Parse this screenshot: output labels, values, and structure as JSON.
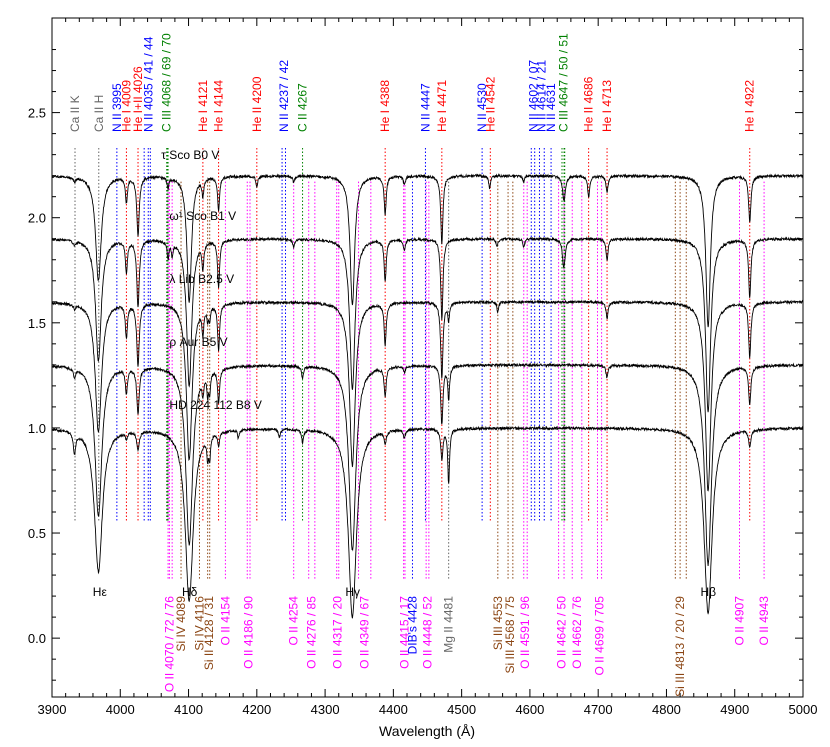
{
  "colors": {
    "He": "#ff0000",
    "N": "#0000ff",
    "C": "#008000",
    "O": "#ff00ff",
    "Si": "#8b4513",
    "Ca": "#666666",
    "Mg": "#666666",
    "H": "#000000",
    "DIB": "#0000ff"
  },
  "chart_data": {
    "type": "line",
    "xlabel": "Wavelength (Å)",
    "xlim": [
      3900,
      5000
    ],
    "ylim": [
      -0.28,
      2.95
    ],
    "x_ticks": [
      3900,
      4000,
      4100,
      4200,
      4300,
      4400,
      4500,
      4600,
      4700,
      4800,
      4900,
      5000
    ],
    "x_tick_labels": [
      "3900",
      "4000",
      "4100",
      "4200",
      "4300",
      "4400",
      "4500",
      "4600",
      "4700",
      "4800",
      "4900",
      "5000"
    ],
    "y_ticks": [
      0.0,
      0.5,
      1.0,
      1.5,
      2.0,
      2.5
    ],
    "y_tick_labels": [
      "0.0",
      "0.5",
      "1.0",
      "1.5",
      "2.0",
      "2.5"
    ],
    "grid": false,
    "series": [
      {
        "name": "τ Sco   B0 V",
        "label_x": 4060,
        "label_y": 2.28,
        "continuum": 2.2,
        "lines": [
          [
            3968,
            0.5,
            5
          ],
          [
            3933,
            0.02,
            2
          ],
          [
            4026,
            0.28,
            2.2
          ],
          [
            4101,
            0.6,
            4
          ],
          [
            4009,
            0.12,
            1.8
          ],
          [
            4121,
            0.08,
            1.6
          ],
          [
            4144,
            0.16,
            1.8
          ],
          [
            4388,
            0.18,
            1.8
          ],
          [
            4471,
            0.32,
            2
          ],
          [
            4340,
            0.62,
            4
          ],
          [
            4686,
            0.1,
            1.8
          ],
          [
            4541,
            0.06,
            1.6
          ],
          [
            4200,
            0.05,
            1.6
          ],
          [
            4713,
            0.08,
            1.8
          ],
          [
            4922,
            0.22,
            2
          ],
          [
            4861,
            0.72,
            4
          ],
          [
            4650,
            0.12,
            2.5
          ],
          [
            4070,
            0.05,
            1.6
          ],
          [
            4254,
            0.03,
            1.5
          ],
          [
            4416,
            0.04,
            1.8
          ],
          [
            4591,
            0.03,
            1.5
          ]
        ]
      },
      {
        "name": "ω¹ Sco   B1 V",
        "label_x": 4072,
        "label_y": 1.99,
        "continuum": 1.9,
        "lines": [
          [
            3968,
            0.58,
            5
          ],
          [
            3933,
            0.02,
            2
          ],
          [
            4026,
            0.32,
            2.2
          ],
          [
            4101,
            0.7,
            4.5
          ],
          [
            4009,
            0.15,
            1.8
          ],
          [
            4121,
            0.12,
            1.6
          ],
          [
            4144,
            0.22,
            1.8
          ],
          [
            4388,
            0.2,
            1.8
          ],
          [
            4471,
            0.38,
            2
          ],
          [
            4340,
            0.72,
            4.5
          ],
          [
            4713,
            0.1,
            1.8
          ],
          [
            4922,
            0.28,
            2
          ],
          [
            4861,
            0.82,
            4.5
          ],
          [
            4650,
            0.1,
            2.5
          ],
          [
            4070,
            0.08,
            1.6
          ],
          [
            4076,
            0.06,
            1.4
          ],
          [
            4254,
            0.04,
            1.5
          ],
          [
            4416,
            0.05,
            1.8
          ],
          [
            4591,
            0.04,
            1.5
          ],
          [
            4649,
            0.05,
            1.5
          ],
          [
            4552,
            0.04,
            1.4
          ]
        ]
      },
      {
        "name": "λ Lib   B2.5 V",
        "label_x": 4072,
        "label_y": 1.69,
        "continuum": 1.6,
        "lines": [
          [
            3968,
            0.62,
            5.5
          ],
          [
            3933,
            0.02,
            2
          ],
          [
            4026,
            0.3,
            2.2
          ],
          [
            4101,
            0.75,
            5
          ],
          [
            4009,
            0.16,
            1.8
          ],
          [
            4121,
            0.12,
            1.6
          ],
          [
            4144,
            0.22,
            1.8
          ],
          [
            4388,
            0.2,
            1.8
          ],
          [
            4471,
            0.36,
            2
          ],
          [
            4340,
            0.78,
            5
          ],
          [
            4713,
            0.08,
            1.8
          ],
          [
            4922,
            0.26,
            2
          ],
          [
            4861,
            0.9,
            5
          ],
          [
            4128,
            0.06,
            1.4
          ],
          [
            4131,
            0.06,
            1.4
          ],
          [
            4481,
            0.08,
            1.6
          ],
          [
            4553,
            0.05,
            1.4
          ]
        ]
      },
      {
        "name": "ρ Aur   B5 V",
        "label_x": 4072,
        "label_y": 1.39,
        "continuum": 1.3,
        "lines": [
          [
            3968,
            0.72,
            6
          ],
          [
            3933,
            0.04,
            2
          ],
          [
            4026,
            0.22,
            2.2
          ],
          [
            4101,
            0.85,
            6
          ],
          [
            4009,
            0.12,
            1.8
          ],
          [
            4121,
            0.08,
            1.6
          ],
          [
            4144,
            0.16,
            1.8
          ],
          [
            4388,
            0.14,
            1.8
          ],
          [
            4471,
            0.28,
            2
          ],
          [
            4340,
            0.88,
            6
          ],
          [
            4713,
            0.06,
            1.8
          ],
          [
            4922,
            0.18,
            2
          ],
          [
            4861,
            0.95,
            6
          ],
          [
            4128,
            0.1,
            1.4
          ],
          [
            4131,
            0.1,
            1.4
          ],
          [
            4481,
            0.16,
            1.6
          ],
          [
            4267,
            0.06,
            1.6
          ],
          [
            4416,
            0.03,
            1.8
          ]
        ]
      },
      {
        "name": "HD 224 112   B8 V",
        "label_x": 4072,
        "label_y": 1.09,
        "continuum": 1.0,
        "lines": [
          [
            3968,
            0.68,
            7
          ],
          [
            3933,
            0.1,
            2
          ],
          [
            4026,
            0.09,
            2.2
          ],
          [
            4101,
            0.82,
            7
          ],
          [
            4009,
            0.03,
            1.8
          ],
          [
            4144,
            0.06,
            1.8
          ],
          [
            4388,
            0.06,
            1.8
          ],
          [
            4471,
            0.14,
            2
          ],
          [
            4340,
            0.9,
            7
          ],
          [
            4922,
            0.08,
            2
          ],
          [
            4861,
            0.88,
            7
          ],
          [
            4128,
            0.1,
            1.4
          ],
          [
            4131,
            0.1,
            1.4
          ],
          [
            4481,
            0.26,
            1.6
          ],
          [
            4267,
            0.06,
            1.6
          ],
          [
            4416,
            0.04,
            1.8
          ],
          [
            4233,
            0.04,
            1.4
          ],
          [
            4173,
            0.04,
            1.4
          ]
        ]
      }
    ],
    "line_labels_top": [
      {
        "text": "Ca II K",
        "x": 3933.7,
        "color": "Ca",
        "group": 1
      },
      {
        "text": "Ca II H",
        "x": 3968.5,
        "color": "Ca",
        "group": 1
      },
      {
        "text": "N II 3995",
        "x": 3995,
        "color": "N",
        "group": 2
      },
      {
        "text": "He I 4009",
        "x": 4009,
        "color": "He",
        "group": 2
      },
      {
        "text": "He I+II 4026",
        "x": 4026,
        "color": "He",
        "group": 2
      },
      {
        "text": "N II 4035 / 41 / 44",
        "x": 4041,
        "color": "N",
        "group": 2,
        "marks": [
          4035,
          4041,
          4044
        ]
      },
      {
        "text": "C III 4068 / 69 / 70",
        "x": 4068,
        "color": "C",
        "group": 2,
        "marks": [
          4068,
          4069,
          4070
        ]
      },
      {
        "text": "He I 4121",
        "x": 4121,
        "color": "He",
        "group": 2
      },
      {
        "text": "He I 4144",
        "x": 4144,
        "color": "He",
        "group": 2
      },
      {
        "text": "He II 4200",
        "x": 4200,
        "color": "He",
        "group": 2
      },
      {
        "text": "N II 4237 / 42",
        "x": 4240,
        "color": "N",
        "group": 2,
        "marks": [
          4237,
          4242
        ]
      },
      {
        "text": "C II 4267",
        "x": 4267,
        "color": "C",
        "group": 2
      },
      {
        "text": "He I 4388",
        "x": 4388,
        "color": "He",
        "group": 2
      },
      {
        "text": "N II 4447",
        "x": 4447,
        "color": "N",
        "group": 2
      },
      {
        "text": "He I 4471",
        "x": 4471,
        "color": "He",
        "group": 2
      },
      {
        "text": "N II 4530",
        "x": 4530,
        "color": "N",
        "group": 2
      },
      {
        "text": "He II 4542",
        "x": 4542,
        "color": "He",
        "group": 2
      },
      {
        "text": "N II 4602 / 07",
        "x": 4605,
        "color": "N",
        "group": 2,
        "marks": [
          4602,
          4607
        ]
      },
      {
        "text": "N II 4614 / 21",
        "x": 4617,
        "color": "N",
        "group": 2,
        "marks": [
          4614,
          4621
        ]
      },
      {
        "text": "N II 4631",
        "x": 4631,
        "color": "N",
        "group": 2
      },
      {
        "text": "C III 4647 / 50 / 51",
        "x": 4649,
        "color": "C",
        "group": 2,
        "marks": [
          4647,
          4650,
          4651
        ]
      },
      {
        "text": "He II 4686",
        "x": 4686,
        "color": "He",
        "group": 2
      },
      {
        "text": "He I 4713",
        "x": 4713,
        "color": "He",
        "group": 2
      },
      {
        "text": "He I 4922",
        "x": 4922,
        "color": "He",
        "group": 2
      }
    ],
    "line_labels_bottom": [
      {
        "text": "Hε",
        "x": 3970,
        "color": "H",
        "kind": "horizontal"
      },
      {
        "text": "Hδ",
        "x": 4101.7,
        "color": "H",
        "kind": "horizontal"
      },
      {
        "text": "Hγ",
        "x": 4340.5,
        "color": "H",
        "kind": "horizontal"
      },
      {
        "text": "Hβ",
        "x": 4861.3,
        "color": "H",
        "kind": "horizontal"
      },
      {
        "text": "O II 4070 / 72 / 76",
        "x": 4072,
        "color": "O",
        "marks": [
          4070,
          4072,
          4076
        ]
      },
      {
        "text": "Si IV 4089",
        "x": 4089,
        "color": "Si"
      },
      {
        "text": "Si IV 4116",
        "x": 4116,
        "color": "Si"
      },
      {
        "text": "Si II 4128 / 31",
        "x": 4130,
        "color": "Si",
        "marks": [
          4128,
          4131
        ]
      },
      {
        "text": "O II 4154",
        "x": 4154,
        "color": "O"
      },
      {
        "text": "O II 4186 / 90",
        "x": 4188,
        "color": "O",
        "marks": [
          4186,
          4190
        ]
      },
      {
        "text": "O II 4254",
        "x": 4254,
        "color": "O"
      },
      {
        "text": "O II 4276 / 85",
        "x": 4280,
        "color": "O",
        "marks": [
          4276,
          4285
        ]
      },
      {
        "text": "O II 4317 / 20",
        "x": 4318,
        "color": "O",
        "marks": [
          4317,
          4320
        ]
      },
      {
        "text": "O II 4349 / 67",
        "x": 4358,
        "color": "O",
        "marks": [
          4349,
          4367
        ]
      },
      {
        "text": "O II 4415 / 17",
        "x": 4416,
        "color": "O",
        "marks": [
          4415,
          4417
        ]
      },
      {
        "text": "DIB's 4428",
        "x": 4428,
        "color": "DIB"
      },
      {
        "text": "O II 4448 / 52",
        "x": 4450,
        "color": "O",
        "marks": [
          4448,
          4452
        ]
      },
      {
        "text": "Mg II 4481",
        "x": 4481,
        "color": "Mg"
      },
      {
        "text": "Si III 4553",
        "x": 4553,
        "color": "Si"
      },
      {
        "text": "Si III 4568 / 75",
        "x": 4571,
        "color": "Si",
        "marks": [
          4568,
          4575
        ]
      },
      {
        "text": "O II 4591 / 96",
        "x": 4593,
        "color": "O",
        "marks": [
          4591,
          4596
        ]
      },
      {
        "text": "O II 4642 / 50",
        "x": 4646,
        "color": "O",
        "marks": [
          4642,
          4650
        ]
      },
      {
        "text": "O II 4662 / 76",
        "x": 4669,
        "color": "O",
        "marks": [
          4662,
          4676
        ]
      },
      {
        "text": "O II 4699 / 705",
        "x": 4702,
        "color": "O",
        "marks": [
          4699,
          4705
        ]
      },
      {
        "text": "Si III 4813 / 20 / 29",
        "x": 4820,
        "color": "Si",
        "marks": [
          4813,
          4820,
          4829
        ]
      },
      {
        "text": "O II 4907",
        "x": 4907,
        "color": "O"
      },
      {
        "text": "O II 4943",
        "x": 4943,
        "color": "O"
      }
    ]
  }
}
